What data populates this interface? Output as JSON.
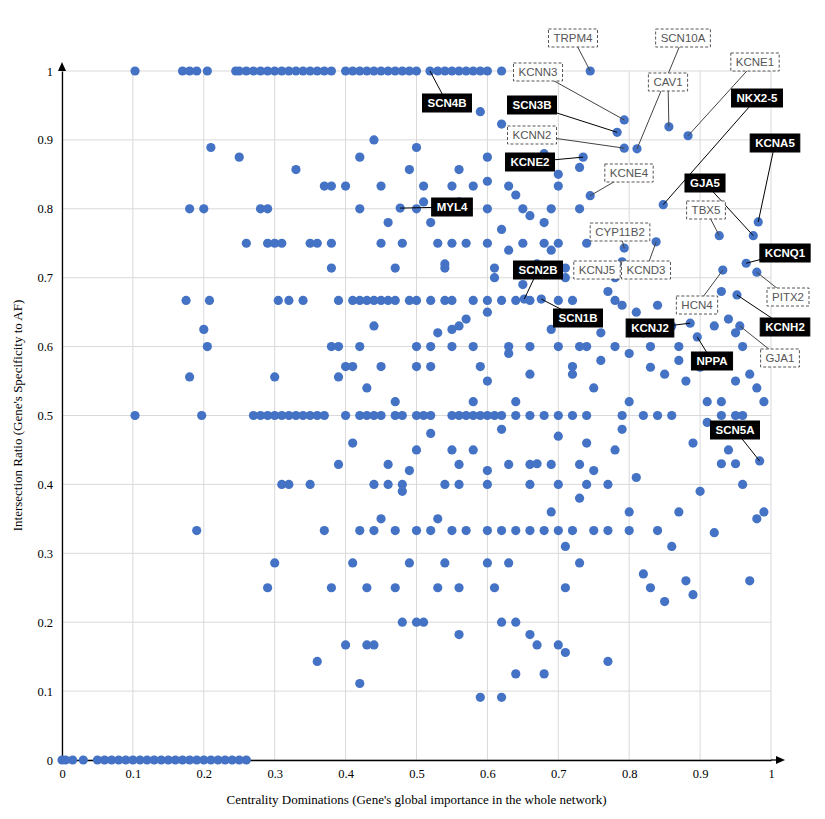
{
  "chart_data": {
    "type": "scatter",
    "x_label": "Centrality Dominations (Gene's global importance in the whole network)",
    "y_label": "Intersection Ratio (Gene's Specificity to AF)",
    "color": "#4472c4",
    "grid": true,
    "xlim": [
      0,
      1
    ],
    "ylim": [
      0,
      1
    ],
    "xticks": [
      0,
      0.1,
      0.2,
      0.3,
      0.4,
      0.5,
      0.6,
      0.7,
      0.8,
      0.9,
      1
    ],
    "yticks": [
      0,
      0.1,
      0.2,
      0.3,
      0.4,
      0.5,
      0.6,
      0.7,
      0.8,
      0.9,
      1
    ],
    "x": [
      0,
      0.005,
      0.015,
      0.03,
      0.05,
      0.06,
      0.07,
      0.08,
      0.09,
      0.1,
      0.11,
      0.12,
      0.13,
      0.14,
      0.15,
      0.16,
      0.17,
      0.18,
      0.19,
      0.2,
      0.21,
      0.22,
      0.23,
      0.24,
      0.25,
      0.26,
      0.103,
      0.17,
      0.18,
      0.19,
      0.205,
      0.245,
      0.25,
      0.26,
      0.27,
      0.28,
      0.29,
      0.3,
      0.31,
      0.32,
      0.33,
      0.34,
      0.35,
      0.36,
      0.37,
      0.38,
      0.4,
      0.41,
      0.42,
      0.43,
      0.44,
      0.45,
      0.46,
      0.47,
      0.48,
      0.49,
      0.5,
      0.519,
      0.53,
      0.54,
      0.55,
      0.56,
      0.57,
      0.58,
      0.59,
      0.6,
      0.62,
      0.745,
      0.103,
      0.197,
      0.27,
      0.28,
      0.29,
      0.3,
      0.31,
      0.32,
      0.33,
      0.34,
      0.35,
      0.36,
      0.37,
      0.4,
      0.42,
      0.43,
      0.44,
      0.45,
      0.47,
      0.48,
      0.5,
      0.51,
      0.52,
      0.55,
      0.56,
      0.57,
      0.58,
      0.59,
      0.6,
      0.61,
      0.62,
      0.64,
      0.66,
      0.68,
      0.7,
      0.72,
      0.74,
      0.79,
      0.82,
      0.86,
      0.93,
      0.95,
      0.175,
      0.208,
      0.305,
      0.32,
      0.34,
      0.39,
      0.41,
      0.42,
      0.43,
      0.44,
      0.45,
      0.46,
      0.47,
      0.49,
      0.5,
      0.52,
      0.54,
      0.55,
      0.58,
      0.6,
      0.62,
      0.64,
      0.66,
      0.7,
      0.72,
      0.78,
      0.26,
      0.29,
      0.3,
      0.31,
      0.35,
      0.36,
      0.38,
      0.45,
      0.48,
      0.53,
      0.55,
      0.57,
      0.6,
      0.65,
      0.68,
      0.7,
      0.74,
      0.18,
      0.2,
      0.28,
      0.29,
      0.42,
      0.5,
      0.6,
      0.65,
      0.69,
      0.73,
      0.37,
      0.38,
      0.4,
      0.45,
      0.51,
      0.55,
      0.58,
      0.63,
      0.7,
      0.205,
      0.38,
      0.39,
      0.42,
      0.5,
      0.52,
      0.55,
      0.58,
      0.63,
      0.66,
      0.7,
      0.73,
      0.78,
      0.19,
      0.37,
      0.42,
      0.44,
      0.47,
      0.5,
      0.52,
      0.55,
      0.57,
      0.6,
      0.62,
      0.64,
      0.66,
      0.68,
      0.7,
      0.72,
      0.75,
      0.77,
      0.8,
      0.84,
      0.31,
      0.32,
      0.35,
      0.44,
      0.46,
      0.48,
      0.54,
      0.56,
      0.6,
      0.66,
      0.7,
      0.74,
      0.77,
      0.29,
      0.38,
      0.43,
      0.47,
      0.53,
      0.56,
      0.61,
      0.71,
      0.39,
      0.46,
      0.56,
      0.63,
      0.66,
      0.69,
      0.73,
      0.4,
      0.41,
      0.45,
      0.5,
      0.52,
      0.59,
      0.72,
      0.38,
      0.47,
      0.54,
      0.61,
      0.71,
      0.3,
      0.41,
      0.49,
      0.54,
      0.6,
      0.63,
      0.73,
      0.48,
      0.5,
      0.51,
      0.62,
      0.64,
      0.4,
      0.43,
      0.44,
      0.67,
      0.7,
      0.25,
      0.42,
      0.6,
      0.33,
      0.49,
      0.56,
      0.44,
      0.21,
      0.5,
      0.2,
      0.55,
      0.69,
      0.18,
      0.3,
      0.39,
      0.36,
      0.42,
      0.59,
      0.62,
      0.64,
      0.68,
      0.77,
      0.71,
      0.66,
      0.56,
      0.59,
      0.62,
      0.52,
      0.55,
      0.53,
      0.58,
      0.6,
      0.62,
      0.64,
      0.67,
      0.69,
      0.71,
      0.73,
      0.74,
      0.75,
      0.76,
      0.78,
      0.8,
      0.81,
      0.82,
      0.83,
      0.85,
      0.86,
      0.87,
      0.88,
      0.89,
      0.9,
      0.91,
      0.92,
      0.93,
      0.94,
      0.95,
      0.96,
      0.97,
      0.98,
      0.99,
      0.99,
      0.98,
      0.97,
      0.96,
      0.95,
      0.94,
      0.93,
      0.92,
      0.9,
      0.88,
      0.87,
      0.86,
      0.84,
      0.83,
      0.82,
      0.81,
      0.8,
      0.79,
      0.78,
      0.77,
      0.76,
      0.74,
      0.73,
      0.72,
      0.71,
      0.69,
      0.68,
      0.67,
      0.66,
      0.65,
      0.64,
      0.63,
      0.62,
      0.61,
      0.57,
      0.56,
      0.54,
      0.53,
      0.52,
      0.51,
      0.46,
      0.44,
      0.43,
      0.41,
      0.47,
      0.49,
      0.6,
      0.7,
      0.84,
      0.89,
      0.85,
      0.87,
      0.83,
      0.96,
      0.95,
      0.93,
      0.91,
      0.8,
      0.79,
      0.75,
      0.66,
      0.63,
      0.6,
      0.58,
      0.45,
      0.48,
      0.5,
      0.7,
      0.68,
      0.73,
      0.6,
      0.56,
      0.811,
      0.793,
      0.856,
      0.883,
      0.783,
      0.848,
      0.793,
      0.735,
      0.982,
      0.745,
      0.477,
      0.975,
      0.927,
      0.793,
      0.652,
      0.676,
      0.79,
      0.838,
      0.965,
      0.98,
      0.932,
      0.886,
      0.952,
      0.956,
      0.896,
      0.984
    ],
    "y": [
      0,
      0,
      0,
      0,
      0,
      0,
      0,
      0,
      0,
      0,
      0,
      0,
      0,
      0,
      0,
      0,
      0,
      0,
      0,
      0,
      0,
      0,
      0,
      0,
      0,
      0,
      1,
      1,
      1,
      1,
      1,
      1,
      1,
      1,
      1,
      1,
      1,
      1,
      1,
      1,
      1,
      1,
      1,
      1,
      1,
      1,
      1,
      1,
      1,
      1,
      1,
      1,
      1,
      1,
      1,
      1,
      1,
      1,
      1,
      1,
      1,
      1,
      1,
      1,
      1,
      1,
      1,
      1,
      0.5,
      0.5,
      0.5,
      0.5,
      0.5,
      0.5,
      0.5,
      0.5,
      0.5,
      0.5,
      0.5,
      0.5,
      0.5,
      0.5,
      0.5,
      0.5,
      0.5,
      0.5,
      0.5,
      0.5,
      0.5,
      0.5,
      0.5,
      0.5,
      0.5,
      0.5,
      0.5,
      0.5,
      0.5,
      0.5,
      0.5,
      0.5,
      0.5,
      0.5,
      0.5,
      0.5,
      0.5,
      0.5,
      0.5,
      0.5,
      0.5,
      0.5,
      0.667,
      0.667,
      0.667,
      0.667,
      0.667,
      0.667,
      0.667,
      0.667,
      0.667,
      0.667,
      0.667,
      0.667,
      0.667,
      0.667,
      0.667,
      0.667,
      0.667,
      0.667,
      0.667,
      0.667,
      0.667,
      0.667,
      0.667,
      0.667,
      0.667,
      0.667,
      0.75,
      0.75,
      0.75,
      0.75,
      0.75,
      0.75,
      0.75,
      0.75,
      0.75,
      0.75,
      0.75,
      0.75,
      0.75,
      0.75,
      0.75,
      0.75,
      0.75,
      0.8,
      0.8,
      0.8,
      0.8,
      0.8,
      0.8,
      0.8,
      0.8,
      0.8,
      0.8,
      0.833,
      0.833,
      0.833,
      0.833,
      0.833,
      0.833,
      0.833,
      0.833,
      0.833,
      0.6,
      0.6,
      0.6,
      0.6,
      0.6,
      0.6,
      0.6,
      0.6,
      0.6,
      0.6,
      0.6,
      0.6,
      0.6,
      0.333,
      0.333,
      0.333,
      0.333,
      0.333,
      0.333,
      0.333,
      0.333,
      0.333,
      0.333,
      0.333,
      0.333,
      0.333,
      0.333,
      0.333,
      0.333,
      0.333,
      0.333,
      0.333,
      0.333,
      0.4,
      0.4,
      0.4,
      0.4,
      0.4,
      0.4,
      0.4,
      0.4,
      0.4,
      0.4,
      0.4,
      0.4,
      0.4,
      0.25,
      0.25,
      0.25,
      0.25,
      0.25,
      0.25,
      0.25,
      0.25,
      0.429,
      0.429,
      0.429,
      0.429,
      0.429,
      0.429,
      0.429,
      0.571,
      0.571,
      0.571,
      0.571,
      0.571,
      0.571,
      0.571,
      0.714,
      0.714,
      0.714,
      0.714,
      0.714,
      0.286,
      0.286,
      0.286,
      0.286,
      0.286,
      0.286,
      0.286,
      0.2,
      0.2,
      0.2,
      0.2,
      0.2,
      0.167,
      0.167,
      0.167,
      0.167,
      0.167,
      0.875,
      0.875,
      0.875,
      0.857,
      0.857,
      0.857,
      0.9,
      0.889,
      0.889,
      0.625,
      0.625,
      0.625,
      0.556,
      0.556,
      0.556,
      0.143,
      0.111,
      0.091,
      0.091,
      0.125,
      0.125,
      0.143,
      0.156,
      0.182,
      0.182,
      0.941,
      0.923,
      0.474,
      0.45,
      0.35,
      0.45,
      0.55,
      0.48,
      0.52,
      0.43,
      0.36,
      0.31,
      0.38,
      0.46,
      0.54,
      0.58,
      0.45,
      0.36,
      0.41,
      0.27,
      0.25,
      0.23,
      0.31,
      0.36,
      0.26,
      0.24,
      0.39,
      0.49,
      0.33,
      0.52,
      0.45,
      0.43,
      0.4,
      0.26,
      0.35,
      0.36,
      0.52,
      0.54,
      0.56,
      0.6,
      0.62,
      0.64,
      0.68,
      0.63,
      0.57,
      0.55,
      0.6,
      0.63,
      0.66,
      0.6,
      0.62,
      0.65,
      0.59,
      0.66,
      0.7,
      0.68,
      0.62,
      0.6,
      0.64,
      0.56,
      0.7,
      0.74,
      0.78,
      0.72,
      0.79,
      0.69,
      0.82,
      0.74,
      0.77,
      0.7,
      0.64,
      0.63,
      0.72,
      0.62,
      0.78,
      0.81,
      0.78,
      0.63,
      0.54,
      0.46,
      0.52,
      0.42,
      0.42,
      0.47,
      0.5,
      0.46,
      0.56,
      0.58,
      0.57,
      0.5,
      0.55,
      0.43,
      0.52,
      0.52,
      0.48,
      0.42,
      0.56,
      0.59,
      0.65,
      0.52,
      0.35,
      0.39,
      0.45,
      0.85,
      0.88,
      0.86,
      0.84,
      0.81,
      0.887,
      0.929,
      0.919,
      0.906,
      0.911,
      0.806,
      0.888,
      0.875,
      0.781,
      0.819,
      0.801,
      0.761,
      0.761,
      0.743,
      0.669,
      0.669,
      0.723,
      0.752,
      0.721,
      0.708,
      0.711,
      0.634,
      0.675,
      0.63,
      0.614,
      0.434
    ],
    "annotations": [
      {
        "text": "TRPM4",
        "x": 0.745,
        "y": 1
      },
      {
        "text": "SCN10A",
        "x": 0.811,
        "y": 0.887
      },
      {
        "text": "KCNN3",
        "x": 0.793,
        "y": 0.929
      },
      {
        "text": "CAV1",
        "x": 0.856,
        "y": 0.919
      },
      {
        "text": "KCNE1",
        "x": 0.883,
        "y": 0.906
      },
      {
        "text": "SCN3B",
        "x": 0.783,
        "y": 0.911
      },
      {
        "text": "NKX2-5",
        "x": 0.848,
        "y": 0.806
      },
      {
        "text": "KCNN2",
        "x": 0.793,
        "y": 0.888
      },
      {
        "text": "KCNE2",
        "x": 0.735,
        "y": 0.875
      },
      {
        "text": "KCNA5",
        "x": 0.982,
        "y": 0.781
      },
      {
        "text": "KCNE4",
        "x": 0.745,
        "y": 0.819
      },
      {
        "text": "SCN4B",
        "x": 0.519,
        "y": 1
      },
      {
        "text": "MYL4",
        "x": 0.477,
        "y": 0.801
      },
      {
        "text": "GJA5",
        "x": 0.975,
        "y": 0.761
      },
      {
        "text": "TBX5",
        "x": 0.927,
        "y": 0.761
      },
      {
        "text": "CYP11B2",
        "x": 0.793,
        "y": 0.743
      },
      {
        "text": "SCN2B",
        "x": 0.652,
        "y": 0.669
      },
      {
        "text": "KCNJ5",
        "x": 0.79,
        "y": 0.723
      },
      {
        "text": "KCND3",
        "x": 0.838,
        "y": 0.752
      },
      {
        "text": "KCNQ1",
        "x": 0.965,
        "y": 0.721
      },
      {
        "text": "PITX2",
        "x": 0.98,
        "y": 0.708
      },
      {
        "text": "HCN4",
        "x": 0.932,
        "y": 0.711
      },
      {
        "text": "SCN1B",
        "x": 0.676,
        "y": 0.669
      },
      {
        "text": "KCNJ2",
        "x": 0.886,
        "y": 0.634
      },
      {
        "text": "KCNH2",
        "x": 0.952,
        "y": 0.675
      },
      {
        "text": "GJA1",
        "x": 0.956,
        "y": 0.63
      },
      {
        "text": "NPPA",
        "x": 0.896,
        "y": 0.614
      },
      {
        "text": "SCN5A",
        "x": 0.984,
        "y": 0.434
      }
    ]
  }
}
